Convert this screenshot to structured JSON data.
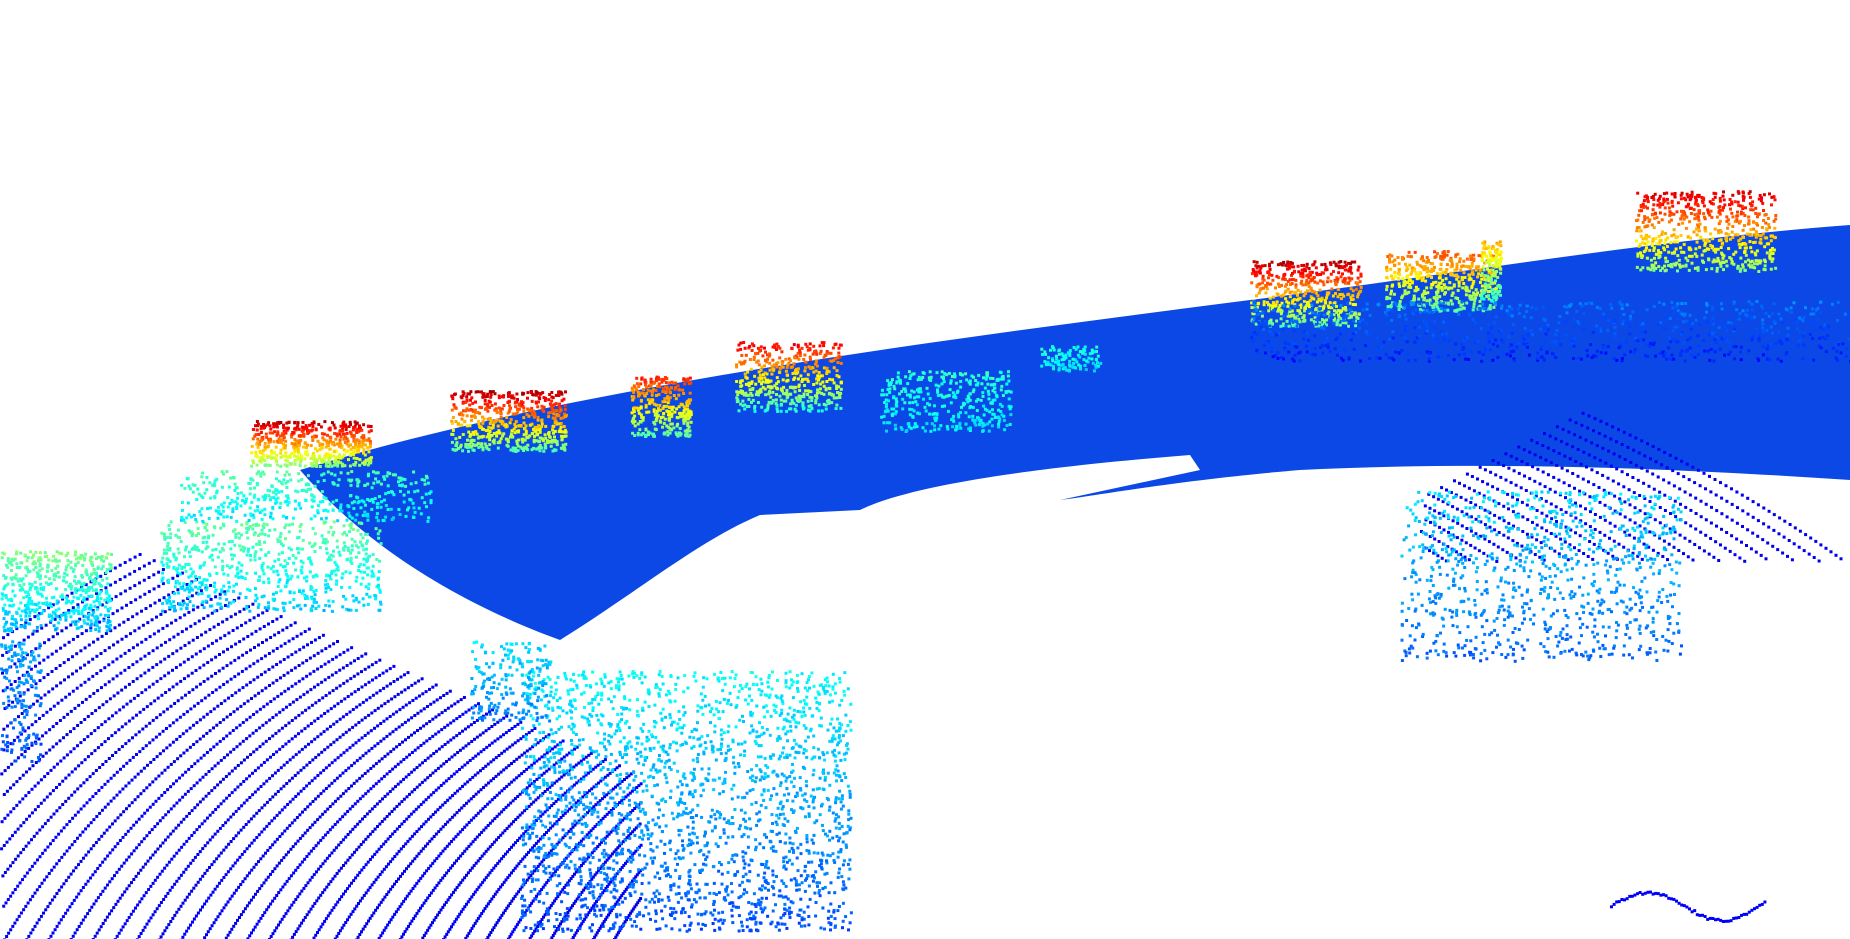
{
  "scene": {
    "background": "#ffffff",
    "colormap": "jet",
    "colormap_stops": [
      "#0a2ad8",
      "#0a5cf0",
      "#13c6f0",
      "#7cf08a",
      "#f0e623",
      "#f07a14",
      "#d80f0f"
    ],
    "description_icon": "lidar-point-cloud"
  }
}
